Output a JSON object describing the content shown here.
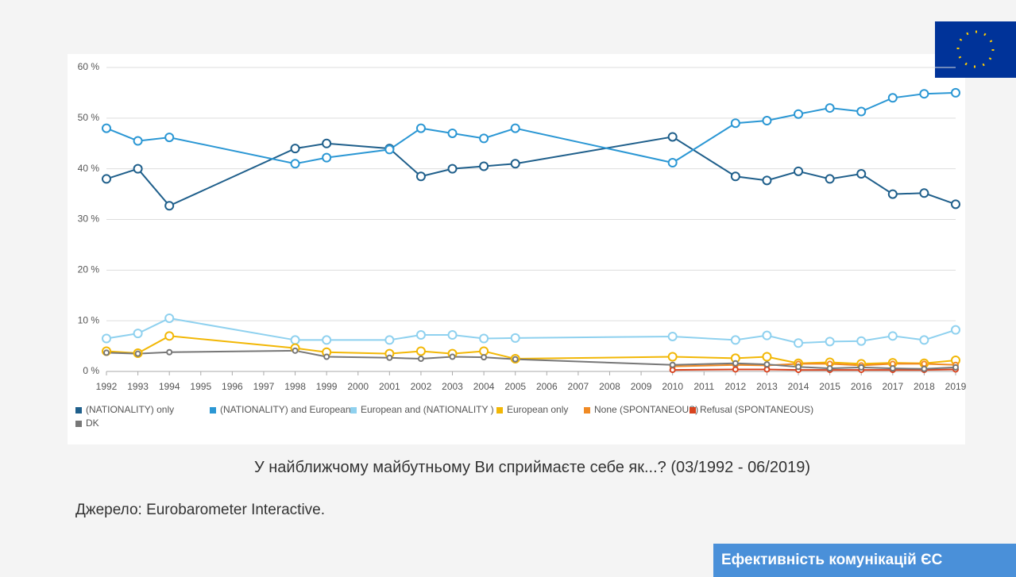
{
  "chart_data": {
    "type": "line",
    "x": [
      1992,
      1993,
      1994,
      1998,
      1999,
      2001,
      2002,
      2003,
      2004,
      2005,
      2010,
      2012,
      2013,
      2014,
      2015,
      2016,
      2017,
      2018,
      2019
    ],
    "series": [
      {
        "name": "(NATIONALITY) only",
        "color": "#1f5f8b",
        "values": [
          38,
          40,
          32.7,
          44,
          45,
          44,
          38.5,
          40,
          40.5,
          41,
          46.3,
          38.5,
          37.7,
          39.5,
          38,
          39,
          35,
          35.2,
          33
        ]
      },
      {
        "name": "(NATIONALITY) and European",
        "color": "#2b97d4",
        "values": [
          48,
          45.5,
          46.2,
          41,
          42.2,
          43.8,
          48,
          47,
          46,
          48,
          41.2,
          49,
          49.5,
          50.8,
          52,
          51.3,
          54,
          54.8,
          55
        ]
      },
      {
        "name": "European and (NATIONALITY )",
        "color": "#8fd1ef",
        "values": [
          6.5,
          7.5,
          10.5,
          6.2,
          6.2,
          6.2,
          7.2,
          7.2,
          6.5,
          6.6,
          6.9,
          6.2,
          7.1,
          5.6,
          5.9,
          6,
          7,
          6.2,
          8.2
        ]
      },
      {
        "name": "European only",
        "color": "#f2b705",
        "values": [
          4,
          3.6,
          7,
          4.6,
          3.8,
          3.5,
          4,
          3.5,
          4,
          2.5,
          2.9,
          2.6,
          2.9,
          1.6,
          1.8,
          1.5,
          1.7,
          1.6,
          2.2
        ]
      },
      {
        "name": "None (SPONTANEOUS)",
        "color": "#f08a24",
        "values": [
          null,
          null,
          null,
          null,
          null,
          null,
          null,
          null,
          null,
          null,
          1,
          1.3,
          1.2,
          1.5,
          1.5,
          1.2,
          1.5,
          1.5,
          1.3
        ]
      },
      {
        "name": "Refusal (SPONTANEOUS)",
        "color": "#d8431e",
        "values": [
          null,
          null,
          null,
          null,
          null,
          null,
          null,
          null,
          null,
          null,
          0.3,
          0.4,
          0.4,
          0.3,
          0.3,
          0.3,
          0.3,
          0.3,
          0.4
        ]
      },
      {
        "name": "DK",
        "color": "#777777",
        "values": [
          3.7,
          3.5,
          3.8,
          4.1,
          2.9,
          2.7,
          2.5,
          2.9,
          2.8,
          2.4,
          1.3,
          1.6,
          1.4,
          0.9,
          0.6,
          0.8,
          0.6,
          0.5,
          0.8
        ]
      }
    ],
    "ylim": [
      0,
      60
    ],
    "yticks": [
      {
        "value": 0,
        "label": "0 %"
      },
      {
        "value": 10,
        "label": "10 %"
      },
      {
        "value": 20,
        "label": "20 %"
      },
      {
        "value": 30,
        "label": "30 %"
      },
      {
        "value": 40,
        "label": "40 %"
      },
      {
        "value": 50,
        "label": "50 %"
      },
      {
        "value": 60,
        "label": "60 %"
      }
    ],
    "xlim": [
      1992,
      2019
    ],
    "xticks": [
      1992,
      1993,
      1994,
      1995,
      1996,
      1997,
      1998,
      1999,
      2000,
      2001,
      2002,
      2003,
      2004,
      2005,
      2006,
      2007,
      2008,
      2009,
      2010,
      2011,
      2012,
      2013,
      2014,
      2015,
      2016,
      2017,
      2018,
      2019
    ],
    "grid": true
  },
  "caption": "У найближчому майбутньому Ви сприймаєте себе як...? (03/1992 - 06/2019)",
  "source": "Джерело: Eurobarometer Interactive.",
  "button": "Ефективність комунікацій ЄС"
}
